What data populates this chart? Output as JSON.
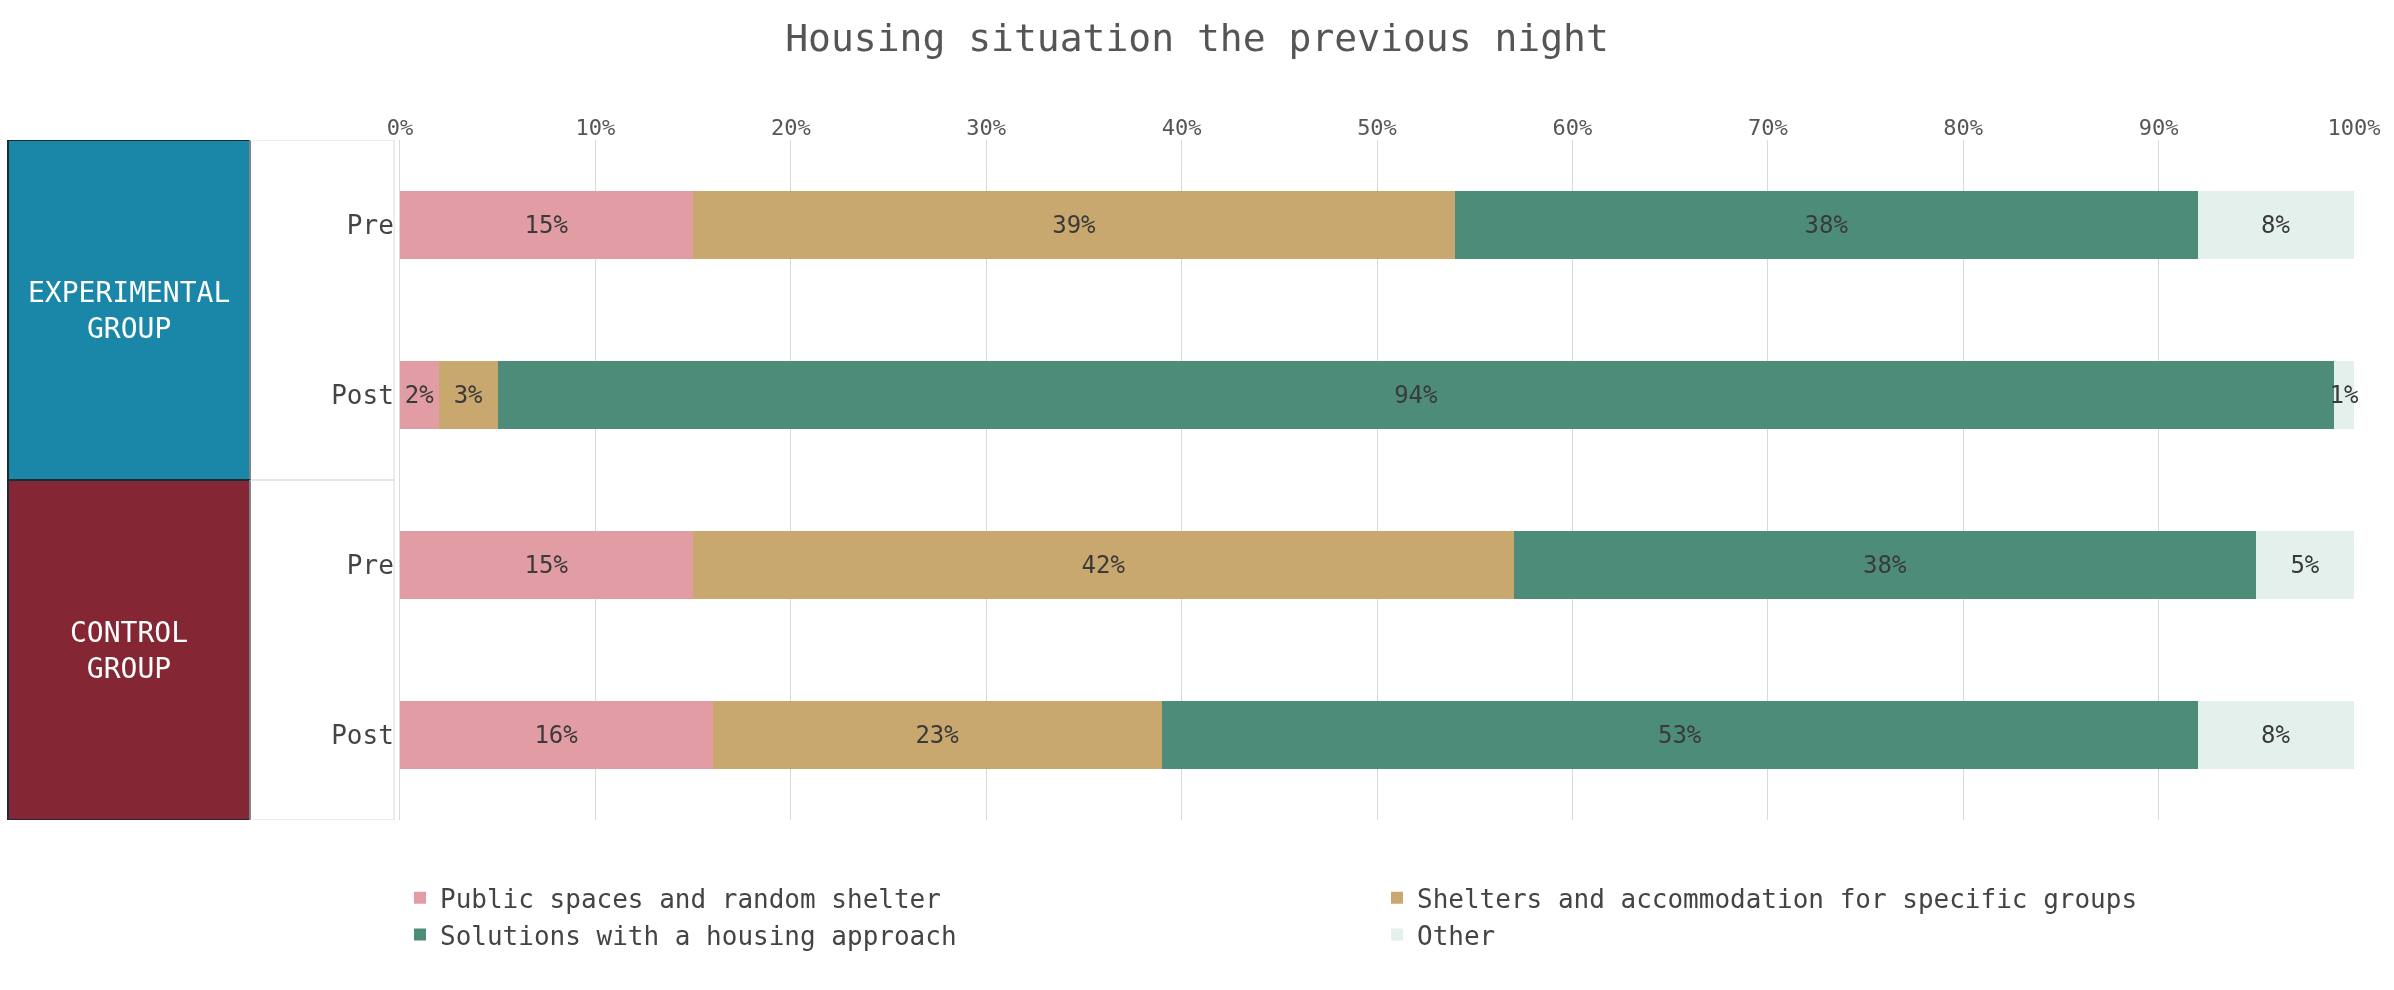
{
  "chart_data": {
    "type": "bar",
    "orientation": "horizontal",
    "stacked": true,
    "title": "Housing situation the previous night",
    "categories": [
      "Pre",
      "Post",
      "Pre",
      "Post"
    ],
    "series": [
      {
        "name": "Public spaces and random shelter",
        "color": "#e29ca4",
        "values": [
          15,
          2,
          15,
          16
        ],
        "value_labels": [
          "15%",
          "2%",
          "15%",
          "16%"
        ]
      },
      {
        "name": "Shelters and accommodation for specific groups",
        "color": "#c8a86e",
        "values": [
          39,
          3,
          42,
          23
        ],
        "value_labels": [
          "39%",
          "3%",
          "42%",
          "23%"
        ]
      },
      {
        "name": "Solutions with a housing approach",
        "color": "#4e8c7a",
        "values": [
          38,
          94,
          38,
          53
        ],
        "value_labels": [
          "38%",
          "94%",
          "38%",
          "53%"
        ]
      },
      {
        "name": "Other",
        "color": "#e3f0ec",
        "values": [
          8,
          1,
          5,
          8
        ],
        "value_labels": [
          "8%",
          "1%",
          "5%",
          "8%"
        ]
      }
    ],
    "xlim": [
      0,
      100
    ],
    "xticks": [
      {
        "value": 0,
        "label": "0%"
      },
      {
        "value": 10,
        "label": "10%"
      },
      {
        "value": 20,
        "label": "20%"
      },
      {
        "value": 30,
        "label": "30%"
      },
      {
        "value": 40,
        "label": "40%"
      },
      {
        "value": 50,
        "label": "50%"
      },
      {
        "value": 60,
        "label": "60%"
      },
      {
        "value": 70,
        "label": "70%"
      },
      {
        "value": 80,
        "label": "80%"
      },
      {
        "value": 90,
        "label": "90%"
      },
      {
        "value": 100,
        "label": "100%"
      }
    ],
    "annotations": [
      "EXPERIMENTAL GROUP",
      "CONTROL GROUP"
    ],
    "grid": "x",
    "legend": "bottom"
  }
}
